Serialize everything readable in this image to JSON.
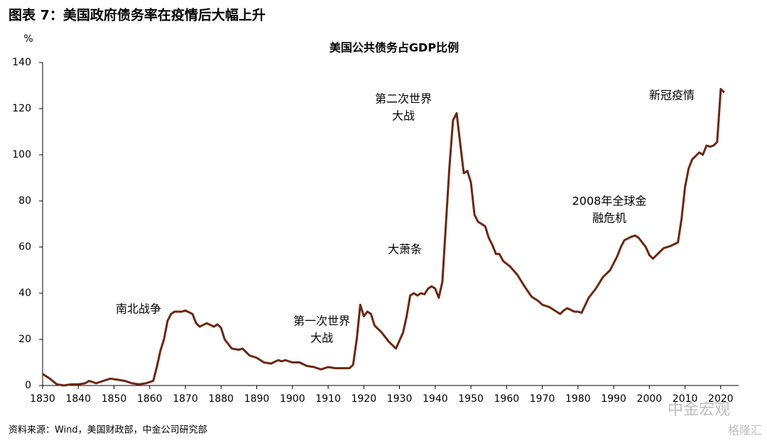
{
  "chart_data": {
    "type": "line",
    "title": "图表 7：美国政府债务率在疫情后大幅上升",
    "subtitle": "美国公共债务占GDP比例",
    "y_label": "%",
    "source": "资料来源：Wind，美国财政部，中金公司研究部",
    "watermarks": [
      "中金宏观",
      "格隆汇"
    ],
    "annotations": [
      [
        "南北战争"
      ],
      [
        "第一次世界",
        "大战"
      ],
      [
        "大萧条"
      ],
      [
        "第二次世界",
        "大战"
      ],
      [
        "2008年全球金",
        "融危机"
      ],
      [
        "新冠疫情"
      ]
    ],
    "color": "#6b2712",
    "xlim": [
      1830,
      2025
    ],
    "xticks": [
      1830,
      1840,
      1850,
      1860,
      1870,
      1880,
      1890,
      1900,
      1910,
      1920,
      1930,
      1940,
      1950,
      1960,
      1970,
      1980,
      1990,
      2000,
      2010,
      2020
    ],
    "ylim": [
      0,
      140
    ],
    "yticks": [
      0,
      20,
      40,
      60,
      80,
      100,
      120,
      140
    ],
    "x": [
      1830,
      1832,
      1834,
      1836,
      1838,
      1840,
      1842,
      1843,
      1845,
      1847,
      1849,
      1851,
      1853,
      1855,
      1857,
      1859,
      1861,
      1862,
      1863,
      1864,
      1865,
      1866,
      1867,
      1869,
      1870,
      1872,
      1873,
      1874,
      1876,
      1878,
      1879,
      1880,
      1881,
      1883,
      1885,
      1886,
      1888,
      1890,
      1892,
      1894,
      1896,
      1897,
      1898,
      1900,
      1902,
      1904,
      1906,
      1908,
      1910,
      1912,
      1914,
      1916,
      1917,
      1918,
      1919,
      1920,
      1921,
      1922,
      1923,
      1925,
      1927,
      1929,
      1931,
      1932,
      1933,
      1934,
      1935,
      1936,
      1937,
      1938,
      1939,
      1940,
      1941,
      1942,
      1943,
      1944,
      1945,
      1946,
      1947,
      1948,
      1949,
      1950,
      1951,
      1952,
      1953,
      1954,
      1955,
      1956,
      1957,
      1958,
      1959,
      1961,
      1963,
      1965,
      1967,
      1969,
      1970,
      1972,
      1974,
      1975,
      1976,
      1977,
      1979,
      1980,
      1981,
      1983,
      1985,
      1987,
      1989,
      1991,
      1992,
      1993,
      1995,
      1996,
      1997,
      1999,
      2000,
      2001,
      2003,
      2004,
      2006,
      2008,
      2009,
      2010,
      2011,
      2012,
      2013,
      2014,
      2015,
      2016,
      2017,
      2018,
      2019,
      2020,
      2021
    ],
    "values": [
      5,
      3,
      0.5,
      0,
      0.5,
      0.5,
      1,
      2,
      1,
      2,
      3,
      2.5,
      2,
      1,
      0.5,
      1,
      2,
      8,
      15,
      20,
      28,
      31,
      32,
      32,
      32.5,
      31,
      27,
      25.5,
      27,
      25.5,
      26.5,
      25,
      20,
      16,
      15.5,
      16,
      13,
      12,
      10,
      9.5,
      11,
      10.5,
      11,
      10,
      10,
      8.5,
      8,
      7,
      8,
      7.5,
      7.5,
      7.5,
      9,
      20,
      35,
      30,
      32,
      31,
      26,
      23,
      19,
      16,
      23,
      30,
      39,
      40,
      39,
      40,
      39.5,
      42,
      43,
      42,
      38,
      45,
      70,
      95,
      115,
      118,
      105,
      92,
      93,
      88,
      74,
      71,
      70,
      69,
      64,
      61,
      57,
      57,
      54,
      51.5,
      48,
      43,
      38.5,
      36.5,
      35,
      34,
      32,
      31,
      32.5,
      33.5,
      32,
      32,
      31.5,
      38,
      42,
      47,
      50,
      56,
      60,
      63,
      64.5,
      65,
      64,
      60,
      56.5,
      55,
      58,
      59.5,
      60.5,
      62,
      72,
      86,
      94,
      98,
      99.5,
      101,
      100,
      104,
      103.5,
      104,
      105.5,
      128.5,
      127
    ]
  }
}
